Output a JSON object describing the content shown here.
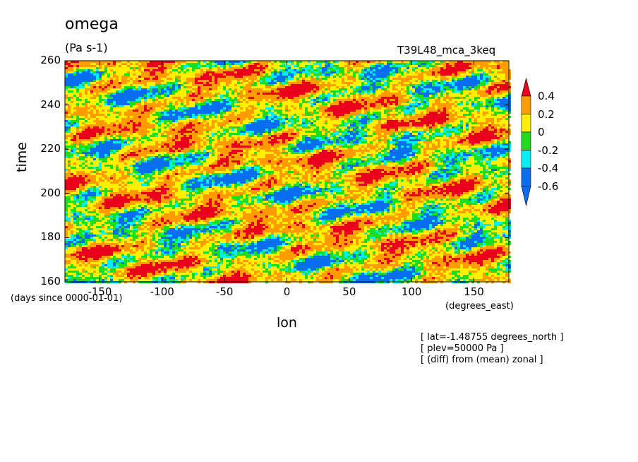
{
  "header": {
    "variable": "omega",
    "units": "(Pa s-1)",
    "run": "T39L48_mca_3keq"
  },
  "colors": {
    "red": "#e8001c",
    "orange": "#ff9d00",
    "yellow": "#ffef00",
    "green": "#1edc1e",
    "cyan": "#00f0f5",
    "blue": "#0a6ef0"
  },
  "chart_data": {
    "type": "heatmap",
    "title": "omega",
    "units": "(Pa s-1)",
    "xlabel": "lon",
    "ylabel": "time",
    "x_unit_label": "(degrees_east)",
    "y_unit_label": "(days since 0000-01-01)",
    "xlim": [
      -178,
      178
    ],
    "ylim": [
      160,
      260
    ],
    "x_ticks": [
      -150,
      -100,
      -50,
      0,
      50,
      100,
      150
    ],
    "x_tick_labels": [
      "-150",
      "-100",
      "-50",
      "0",
      "50",
      "100",
      "150"
    ],
    "y_ticks": [
      160,
      180,
      200,
      220,
      240,
      260
    ],
    "y_tick_labels": [
      "160",
      "180",
      "200",
      "220",
      "240",
      "260"
    ],
    "levels": [
      -0.6,
      -0.4,
      -0.2,
      0,
      0.2,
      0.4
    ],
    "colorbar_labels": [
      "0.4",
      "0.2",
      "0",
      "-0.2",
      "-0.4",
      "-0.6"
    ],
    "colorbar_bins_top_to_bottom": [
      "red",
      "orange",
      "yellow",
      "green",
      "cyan",
      "blue",
      "blue"
    ],
    "notes": [
      "[ lat=-1.48755 degrees_north ]",
      "[ plev=50000 Pa ]",
      "[ (diff) from (mean) zonal ]"
    ]
  }
}
